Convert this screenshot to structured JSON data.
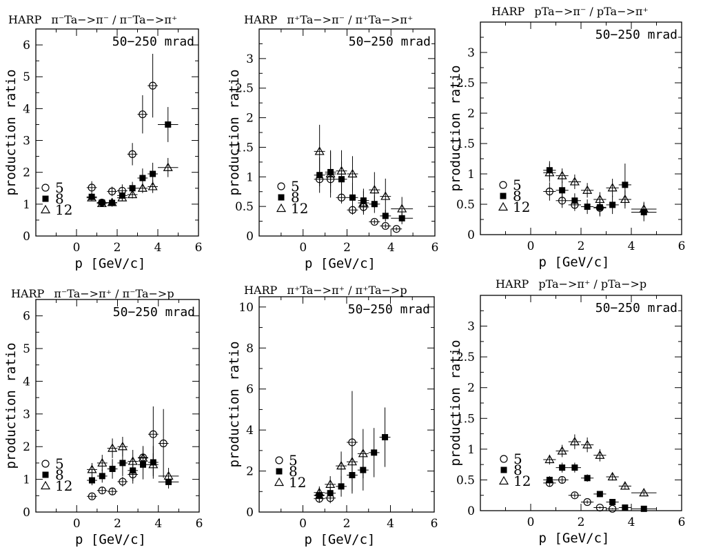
{
  "figure": {
    "xlabel": "p [GeV/c]",
    "ylabel": "production ratio",
    "angle_label": "50−250 mrad",
    "experiment": "HARP",
    "legend": [
      {
        "label": "5",
        "marker": "open-circle"
      },
      {
        "label": "8",
        "marker": "filled-square"
      },
      {
        "label": "12",
        "marker": "open-triangle"
      }
    ]
  },
  "chart_data": [
    {
      "type": "scatter",
      "title": "π⁻Ta−>π⁻ / π⁻Ta−>π⁺",
      "xlabel": "p [GeV/c]",
      "ylabel": "production ratio",
      "annotation": "50−250 mrad",
      "xlim": [
        -2,
        6
      ],
      "ylim": [
        0,
        6.5
      ],
      "xticks": [
        0,
        2,
        4,
        6
      ],
      "yticks": [
        0,
        1,
        2,
        3,
        4,
        5,
        6
      ],
      "series": [
        {
          "name": "5",
          "marker": "open-circle",
          "points": [
            {
              "x": 0.75,
              "y": 1.52,
              "err": 0.2
            },
            {
              "x": 1.25,
              "y": 1.05,
              "err": 0.1
            },
            {
              "x": 1.75,
              "y": 1.4,
              "err": 0.15
            },
            {
              "x": 2.25,
              "y": 1.42,
              "err": 0.2
            },
            {
              "x": 2.75,
              "y": 2.57,
              "err": 0.35
            },
            {
              "x": 3.25,
              "y": 3.82,
              "err": 0.6
            },
            {
              "x": 3.75,
              "y": 4.72,
              "err": 1.0
            }
          ]
        },
        {
          "name": "8",
          "marker": "filled-square",
          "points": [
            {
              "x": 0.75,
              "y": 1.23,
              "err": 0.1
            },
            {
              "x": 1.25,
              "y": 1.05,
              "err": 0.1
            },
            {
              "x": 1.75,
              "y": 1.04,
              "err": 0.12
            },
            {
              "x": 2.25,
              "y": 1.27,
              "err": 0.15
            },
            {
              "x": 2.75,
              "y": 1.5,
              "err": 0.2
            },
            {
              "x": 3.25,
              "y": 1.82,
              "err": 0.3
            },
            {
              "x": 3.75,
              "y": 1.95,
              "err": 0.35
            },
            {
              "x": 4.5,
              "y": 3.5,
              "err": 0.55
            }
          ]
        },
        {
          "name": "12",
          "marker": "open-triangle",
          "points": [
            {
              "x": 0.75,
              "y": 1.2,
              "err": 0.1
            },
            {
              "x": 1.25,
              "y": 1.02,
              "err": 0.08
            },
            {
              "x": 1.75,
              "y": 1.05,
              "err": 0.1
            },
            {
              "x": 2.25,
              "y": 1.2,
              "err": 0.1
            },
            {
              "x": 2.75,
              "y": 1.3,
              "err": 0.12
            },
            {
              "x": 3.25,
              "y": 1.5,
              "err": 0.15
            },
            {
              "x": 3.75,
              "y": 1.55,
              "err": 0.2
            },
            {
              "x": 4.5,
              "y": 2.15,
              "err": 0.3
            }
          ]
        }
      ]
    },
    {
      "type": "scatter",
      "title": "π⁺Ta−>π⁻ / π⁺Ta−>π⁺",
      "xlabel": "p [GeV/c]",
      "ylabel": "production ratio",
      "annotation": "50−250 mrad",
      "xlim": [
        -2,
        6
      ],
      "ylim": [
        0,
        3.5
      ],
      "xticks": [
        0,
        2,
        4,
        6
      ],
      "yticks": [
        0,
        0.5,
        1,
        1.5,
        2,
        2.5,
        3
      ],
      "series": [
        {
          "name": "5",
          "marker": "open-circle",
          "points": [
            {
              "x": 0.75,
              "y": 0.96,
              "err": 0.12
            },
            {
              "x": 1.25,
              "y": 0.96,
              "err": 0.12
            },
            {
              "x": 1.75,
              "y": 0.65,
              "err": 0.1
            },
            {
              "x": 2.25,
              "y": 0.44,
              "err": 0.08
            },
            {
              "x": 2.75,
              "y": 0.49,
              "err": 0.1
            },
            {
              "x": 3.25,
              "y": 0.24,
              "err": 0.04
            },
            {
              "x": 3.75,
              "y": 0.17,
              "err": 0.04
            },
            {
              "x": 4.25,
              "y": 0.12,
              "err": 0.03
            }
          ]
        },
        {
          "name": "8",
          "marker": "filled-square",
          "points": [
            {
              "x": 0.75,
              "y": 1.03,
              "err": 0.3
            },
            {
              "x": 1.25,
              "y": 1.08,
              "err": 0.35
            },
            {
              "x": 1.75,
              "y": 0.96,
              "err": 0.3
            },
            {
              "x": 2.25,
              "y": 0.65,
              "err": 0.25
            },
            {
              "x": 2.75,
              "y": 0.6,
              "err": 0.2
            },
            {
              "x": 3.25,
              "y": 0.54,
              "err": 0.15
            },
            {
              "x": 3.75,
              "y": 0.34,
              "err": 0.1
            },
            {
              "x": 4.5,
              "y": 0.3,
              "err": 0.1
            }
          ]
        },
        {
          "name": "12",
          "marker": "open-triangle",
          "points": [
            {
              "x": 0.75,
              "y": 1.43,
              "err": 0.45
            },
            {
              "x": 1.25,
              "y": 1.05,
              "err": 0.4
            },
            {
              "x": 1.75,
              "y": 1.1,
              "err": 0.35
            },
            {
              "x": 2.25,
              "y": 1.05,
              "err": 0.3
            },
            {
              "x": 2.75,
              "y": 0.56,
              "err": 0.2
            },
            {
              "x": 3.25,
              "y": 0.78,
              "err": 0.3
            },
            {
              "x": 3.75,
              "y": 0.67,
              "err": 0.3
            },
            {
              "x": 4.5,
              "y": 0.46,
              "err": 0.2
            }
          ]
        }
      ]
    },
    {
      "type": "scatter",
      "title": "pTa−>π⁻ / pTa−>π⁺",
      "xlabel": "p [GeV/c]",
      "ylabel": "production ratio",
      "annotation": "50−250 mrad",
      "xlim": [
        -2,
        6
      ],
      "ylim": [
        0,
        3.5
      ],
      "xticks": [
        0,
        2,
        4,
        6
      ],
      "yticks": [
        0,
        0.5,
        1,
        1.5,
        2,
        2.5,
        3
      ],
      "series": [
        {
          "name": "5",
          "marker": "open-circle",
          "points": [
            {
              "x": 0.75,
              "y": 0.71,
              "err": 0.15
            },
            {
              "x": 1.25,
              "y": 0.56,
              "err": 0.12
            },
            {
              "x": 1.75,
              "y": 0.49,
              "err": 0.1
            },
            {
              "x": 2.75,
              "y": 0.44,
              "err": 0.12
            }
          ]
        },
        {
          "name": "8",
          "marker": "filled-square",
          "points": [
            {
              "x": 0.75,
              "y": 1.06,
              "err": 0.15
            },
            {
              "x": 1.25,
              "y": 0.73,
              "err": 0.15
            },
            {
              "x": 1.75,
              "y": 0.56,
              "err": 0.12
            },
            {
              "x": 2.25,
              "y": 0.46,
              "err": 0.12
            },
            {
              "x": 2.75,
              "y": 0.45,
              "err": 0.15
            },
            {
              "x": 3.25,
              "y": 0.49,
              "err": 0.15
            },
            {
              "x": 3.75,
              "y": 0.82,
              "err": 0.35
            },
            {
              "x": 4.5,
              "y": 0.37,
              "err": 0.15
            }
          ]
        },
        {
          "name": "12",
          "marker": "open-triangle",
          "points": [
            {
              "x": 0.75,
              "y": 1.02,
              "err": 0.15
            },
            {
              "x": 1.25,
              "y": 0.97,
              "err": 0.12
            },
            {
              "x": 1.75,
              "y": 0.87,
              "err": 0.12
            },
            {
              "x": 2.25,
              "y": 0.73,
              "err": 0.12
            },
            {
              "x": 2.75,
              "y": 0.58,
              "err": 0.12
            },
            {
              "x": 3.25,
              "y": 0.77,
              "err": 0.15
            },
            {
              "x": 3.75,
              "y": 0.58,
              "err": 0.15
            },
            {
              "x": 4.5,
              "y": 0.42,
              "err": 0.12
            }
          ]
        }
      ]
    },
    {
      "type": "scatter",
      "title": "π⁻Ta−>π⁺ / π⁻Ta−>p",
      "xlabel": "p [GeV/c]",
      "ylabel": "production ratio",
      "annotation": "50−250 mrad",
      "xlim": [
        -2,
        6
      ],
      "ylim": [
        0,
        6.5
      ],
      "xticks": [
        0,
        2,
        4,
        6
      ],
      "yticks": [
        0,
        1,
        2,
        3,
        4,
        5,
        6
      ],
      "series": [
        {
          "name": "5",
          "marker": "open-circle",
          "points": [
            {
              "x": 0.75,
              "y": 0.48,
              "err": 0.08
            },
            {
              "x": 1.25,
              "y": 0.66,
              "err": 0.1
            },
            {
              "x": 1.75,
              "y": 0.63,
              "err": 0.1
            },
            {
              "x": 2.25,
              "y": 0.93,
              "err": 0.15
            },
            {
              "x": 2.75,
              "y": 1.15,
              "err": 0.2
            },
            {
              "x": 3.25,
              "y": 1.67,
              "err": 0.35
            },
            {
              "x": 3.75,
              "y": 2.38,
              "err": 0.85
            },
            {
              "x": 4.25,
              "y": 2.1,
              "err": 1.05
            }
          ]
        },
        {
          "name": "8",
          "marker": "filled-square",
          "points": [
            {
              "x": 0.75,
              "y": 0.97,
              "err": 0.15
            },
            {
              "x": 1.25,
              "y": 1.1,
              "err": 0.2
            },
            {
              "x": 1.75,
              "y": 1.32,
              "err": 0.3
            },
            {
              "x": 2.25,
              "y": 1.5,
              "err": 0.4
            },
            {
              "x": 2.75,
              "y": 1.27,
              "err": 0.4
            },
            {
              "x": 3.25,
              "y": 1.45,
              "err": 0.45
            },
            {
              "x": 3.75,
              "y": 1.52,
              "err": 0.5
            },
            {
              "x": 4.5,
              "y": 0.92,
              "err": 0.2
            }
          ]
        },
        {
          "name": "12",
          "marker": "open-triangle",
          "points": [
            {
              "x": 0.75,
              "y": 1.3,
              "err": 0.2
            },
            {
              "x": 1.25,
              "y": 1.5,
              "err": 0.25
            },
            {
              "x": 1.75,
              "y": 1.95,
              "err": 0.3
            },
            {
              "x": 2.25,
              "y": 2.0,
              "err": 0.3
            },
            {
              "x": 2.75,
              "y": 1.55,
              "err": 0.35
            },
            {
              "x": 3.25,
              "y": 1.65,
              "err": 0.35
            },
            {
              "x": 3.75,
              "y": 1.45,
              "err": 0.35
            },
            {
              "x": 4.5,
              "y": 1.1,
              "err": 0.25
            }
          ]
        }
      ]
    },
    {
      "type": "scatter",
      "title": "π⁺Ta−>π⁺ / π⁺Ta−>p",
      "xlabel": "p [GeV/c]",
      "ylabel": "production ratio",
      "annotation": "50−250 mrad",
      "xlim": [
        -2,
        6
      ],
      "ylim": [
        0,
        10.5
      ],
      "xticks": [
        0,
        2,
        4,
        6
      ],
      "yticks": [
        0,
        2,
        4,
        6,
        8,
        10
      ],
      "series": [
        {
          "name": "5",
          "marker": "open-circle",
          "points": [
            {
              "x": 0.75,
              "y": 0.65,
              "err": 0.2
            },
            {
              "x": 1.25,
              "y": 0.68,
              "err": 0.25
            },
            {
              "x": 2.25,
              "y": 3.4,
              "err": 2.5
            }
          ]
        },
        {
          "name": "8",
          "marker": "filled-square",
          "points": [
            {
              "x": 0.75,
              "y": 0.82,
              "err": 0.3
            },
            {
              "x": 1.25,
              "y": 0.92,
              "err": 0.3
            },
            {
              "x": 1.75,
              "y": 1.25,
              "err": 0.5
            },
            {
              "x": 2.25,
              "y": 1.8,
              "err": 0.8
            },
            {
              "x": 2.75,
              "y": 2.05,
              "err": 1.0
            },
            {
              "x": 3.25,
              "y": 2.9,
              "err": 1.2
            },
            {
              "x": 3.75,
              "y": 3.65,
              "err": 1.45
            }
          ]
        },
        {
          "name": "12",
          "marker": "open-triangle",
          "points": [
            {
              "x": 0.75,
              "y": 0.95,
              "err": 0.3
            },
            {
              "x": 1.25,
              "y": 1.35,
              "err": 0.4
            },
            {
              "x": 1.75,
              "y": 2.25,
              "err": 0.7
            },
            {
              "x": 2.25,
              "y": 2.45,
              "err": 0.9
            },
            {
              "x": 2.75,
              "y": 2.85,
              "err": 1.2
            }
          ]
        }
      ]
    },
    {
      "type": "scatter",
      "title": "pTa−>π⁺ / pTa−>p",
      "xlabel": "p [GeV/c]",
      "ylabel": "production ratio",
      "annotation": "50−250 mrad",
      "xlim": [
        -2,
        6
      ],
      "ylim": [
        0,
        3.5
      ],
      "xticks": [
        0,
        2,
        4,
        6
      ],
      "yticks": [
        0,
        0.5,
        1,
        1.5,
        2,
        2.5,
        3
      ],
      "series": [
        {
          "name": "5",
          "marker": "open-circle",
          "points": [
            {
              "x": 0.75,
              "y": 0.45,
              "err": 0.06
            },
            {
              "x": 1.25,
              "y": 0.5,
              "err": 0.06
            },
            {
              "x": 1.75,
              "y": 0.25,
              "err": 0.04
            },
            {
              "x": 2.25,
              "y": 0.14,
              "err": 0.03
            },
            {
              "x": 2.75,
              "y": 0.05,
              "err": 0.02
            },
            {
              "x": 3.25,
              "y": 0.03,
              "err": 0.01
            }
          ]
        },
        {
          "name": "8",
          "marker": "filled-square",
          "points": [
            {
              "x": 0.75,
              "y": 0.5,
              "err": 0.06
            },
            {
              "x": 1.25,
              "y": 0.7,
              "err": 0.08
            },
            {
              "x": 1.75,
              "y": 0.7,
              "err": 0.08
            },
            {
              "x": 2.25,
              "y": 0.53,
              "err": 0.06
            },
            {
              "x": 2.75,
              "y": 0.27,
              "err": 0.04
            },
            {
              "x": 3.25,
              "y": 0.14,
              "err": 0.03
            },
            {
              "x": 3.75,
              "y": 0.05,
              "err": 0.02
            },
            {
              "x": 4.5,
              "y": 0.03,
              "err": 0.01
            }
          ]
        },
        {
          "name": "12",
          "marker": "open-triangle",
          "points": [
            {
              "x": 0.75,
              "y": 0.83,
              "err": 0.08
            },
            {
              "x": 1.25,
              "y": 0.97,
              "err": 0.1
            },
            {
              "x": 1.75,
              "y": 1.12,
              "err": 0.12
            },
            {
              "x": 2.25,
              "y": 1.07,
              "err": 0.12
            },
            {
              "x": 2.75,
              "y": 0.9,
              "err": 0.1
            },
            {
              "x": 3.25,
              "y": 0.55,
              "err": 0.06
            },
            {
              "x": 3.75,
              "y": 0.4,
              "err": 0.05
            },
            {
              "x": 4.5,
              "y": 0.29,
              "err": 0.04
            }
          ]
        }
      ]
    }
  ]
}
